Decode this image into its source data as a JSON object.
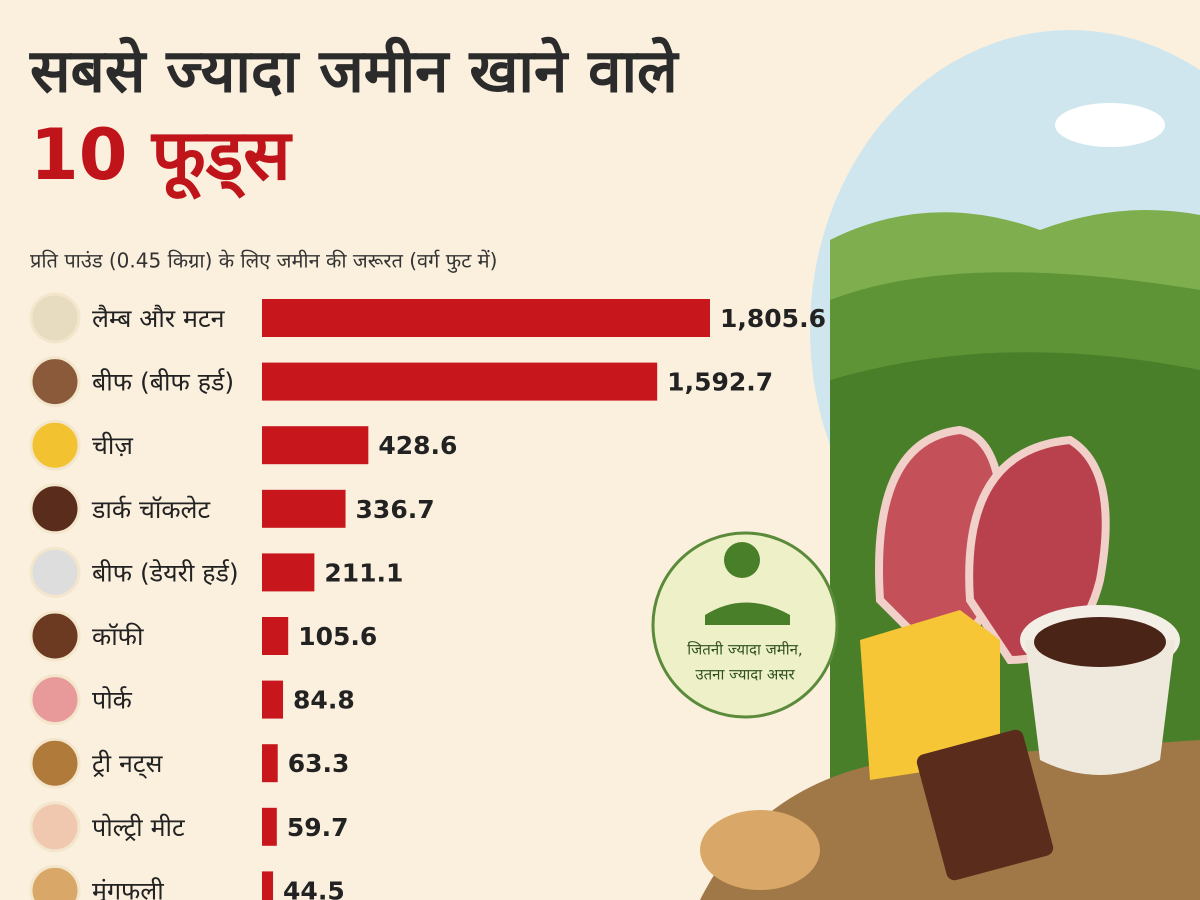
{
  "chart_data": {
    "type": "bar",
    "orientation": "horizontal",
    "title": [
      "सबसे ज्यादा जमीन खाने वाले",
      "10 फूड्स"
    ],
    "subtitle": "प्रति पाउंड (0.45 किग्रा) के लिए जमीन की जरूरत (वर्ग फुट में)",
    "categories": [
      "लैम्ब और मटन",
      "बीफ (बीफ हर्ड)",
      "चीज़",
      "डार्क चॉकलेट",
      "बीफ (डेयरी हर्ड)",
      "कॉफी",
      "पोर्क",
      "ट्री नट्स",
      "पोल्ट्री मीट",
      "मूंगफली"
    ],
    "values": [
      1805.6,
      1592.7,
      428.6,
      336.7,
      211.1,
      105.6,
      84.8,
      63.3,
      59.7,
      44.5
    ],
    "value_labels": [
      "1,805.6",
      "1,592.7",
      "428.6",
      "336.7",
      "211.1",
      "105.6",
      "84.8",
      "63.3",
      "59.7",
      "44.5"
    ],
    "color": "#c8161d",
    "annotation": [
      "जितनी ज्यादा जमीन,",
      "उतना ज्यादा असर"
    ]
  }
}
